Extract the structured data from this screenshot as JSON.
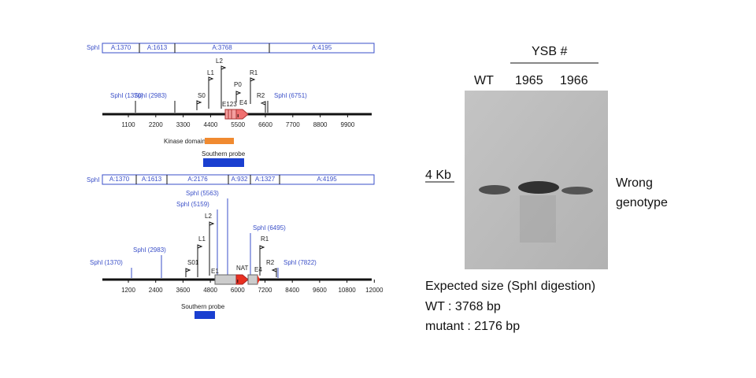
{
  "maps": [
    {
      "fragment_label": "SphI",
      "fragments": [
        "A:1370",
        "A:1613",
        "A:3768",
        "A:4195"
      ],
      "sites": [
        "SphI (1370)",
        "SphI (2983)",
        "SphI (6751)"
      ],
      "primers": [
        "S0",
        "L1",
        "L2",
        "P0",
        "R1",
        "R2"
      ],
      "exons": [
        "E123",
        "E4"
      ],
      "ticks": [
        1100,
        2200,
        3300,
        4400,
        5500,
        6600,
        7700,
        8800,
        9900
      ],
      "kinase_label": "Kinase domain",
      "probe_label": "Southern probe"
    },
    {
      "fragment_label": "SphI",
      "fragments": [
        "A:1370",
        "A:1613",
        "A:2176",
        "A:932",
        "A:1327",
        "A:4195"
      ],
      "sites": [
        "SphI (1370)",
        "SphI (2983)",
        "SphI (5159)",
        "SphI (5563)",
        "SphI (6495)",
        "SphI (7822)"
      ],
      "primers": [
        "S01",
        "L1",
        "L2",
        "R1",
        "R2"
      ],
      "exons": [
        "E1",
        "NAT",
        "E4"
      ],
      "ticks": [
        1200,
        2400,
        3600,
        4800,
        6000,
        7200,
        8400,
        9600,
        10800,
        12000
      ],
      "probe_label": "Southern probe"
    }
  ],
  "blot": {
    "group": "YSB #",
    "lanes": [
      "WT",
      "1965",
      "1966"
    ],
    "marker": "4 Kb",
    "result": [
      "Wrong",
      "genotype"
    ],
    "notes": [
      "Expected size (SphI digestion)",
      "WT : 3768 bp",
      "mutant : 2176 bp"
    ]
  }
}
